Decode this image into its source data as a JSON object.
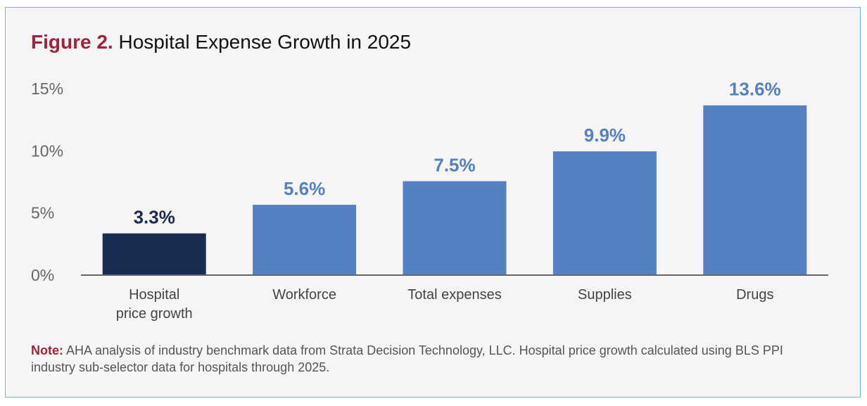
{
  "title_prefix": "Figure 2.",
  "title_text": " Hospital Expense Growth in 2025",
  "note_label": "Note:",
  "note_text": " AHA analysis of industry benchmark data from Strata Decision Technology, LLC. Hospital price growth calculated using BLS PPI industry sub-selector data for hospitals through 2025.",
  "chart_data": {
    "type": "bar",
    "title": "Figure 2. Hospital Expense Growth in 2025",
    "categories": [
      [
        "Hospital",
        "price growth"
      ],
      [
        "Workforce"
      ],
      [
        "Total expenses"
      ],
      [
        "Supplies"
      ],
      [
        "Drugs"
      ]
    ],
    "values": [
      3.3,
      5.6,
      7.5,
      9.9,
      13.6
    ],
    "data_labels": [
      "3.3%",
      "5.6%",
      "7.5%",
      "9.9%",
      "13.6%"
    ],
    "colors": [
      "#1a2b52",
      "#5580c3",
      "#5580c3",
      "#5580c3",
      "#5580c3"
    ],
    "label_colors": [
      "#1a2b52",
      "#5580c3",
      "#5580c3",
      "#5580c3",
      "#5580c3"
    ],
    "yticks": [
      0,
      5,
      10,
      15
    ],
    "ytick_labels": [
      "0%",
      "5%",
      "10%",
      "15%"
    ],
    "ylim": [
      0,
      15
    ],
    "grid": false,
    "xlabel": "",
    "ylabel": ""
  }
}
